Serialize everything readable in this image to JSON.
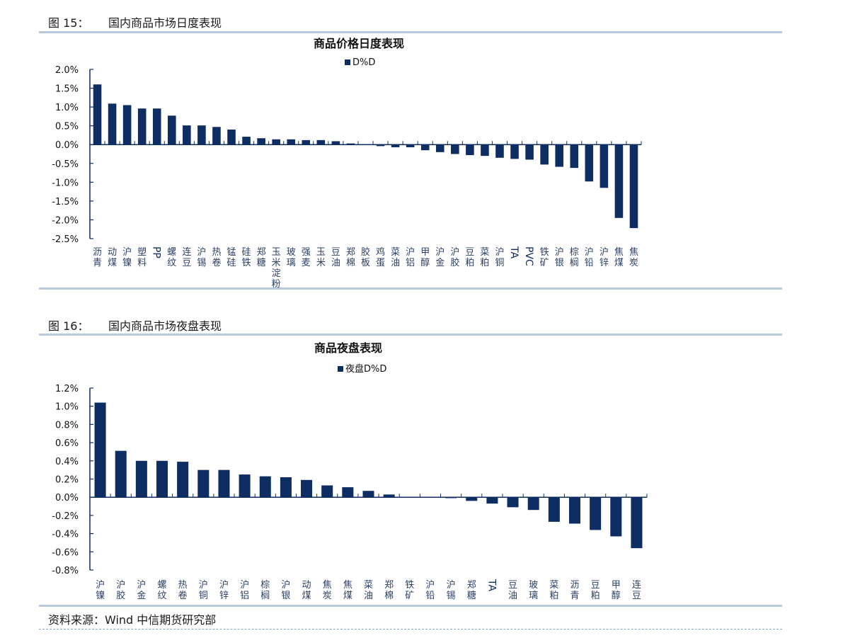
{
  "figures": [
    {
      "label": "图 15：",
      "caption": "国内商品市场日度表现"
    },
    {
      "label": "图 16：",
      "caption": "国内商品市场夜盘表现"
    }
  ],
  "source": "资料来源：Wind  中信期货研究部",
  "colors": {
    "bar": "#0d2d63",
    "rule": "#b8c9dd"
  },
  "chart_data": [
    {
      "type": "bar",
      "title": "商品价格日度表现",
      "legend": "D%D",
      "legend_position": "top",
      "ylim": [
        -2.5,
        2.0
      ],
      "ytick_step": 0.5,
      "ytick_decimals": 1,
      "grid": false,
      "categories": [
        "沥青",
        "动煤",
        "沪镍",
        "塑料",
        "PP",
        "螺纹",
        "连豆",
        "沪锡",
        "热卷",
        "锰硅",
        "硅铁",
        "郑糖",
        "玉米淀粉",
        "玻璃",
        "强麦",
        "玉米",
        "豆油",
        "郑棉",
        "胶板",
        "鸡蛋",
        "菜油",
        "沪铝",
        "甲醇",
        "沪金",
        "沪胶",
        "豆粕",
        "菜粕",
        "沪铜",
        "TA",
        "PVC",
        "铁矿",
        "沪银",
        "棕榈",
        "沪铅",
        "沪锌",
        "焦煤",
        "焦炭"
      ],
      "values": [
        1.6,
        1.09,
        1.05,
        0.96,
        0.96,
        0.77,
        0.51,
        0.51,
        0.47,
        0.4,
        0.21,
        0.17,
        0.14,
        0.14,
        0.12,
        0.12,
        0.09,
        0.03,
        0.0,
        -0.04,
        -0.07,
        -0.07,
        -0.15,
        -0.2,
        -0.25,
        -0.28,
        -0.3,
        -0.35,
        -0.38,
        -0.4,
        -0.53,
        -0.59,
        -0.62,
        -0.98,
        -1.15,
        -1.95,
        -2.22
      ]
    },
    {
      "type": "bar",
      "title": "商品夜盘表现",
      "legend": "夜盘D%D",
      "legend_position": "top",
      "ylim": [
        -0.8,
        1.2
      ],
      "ytick_step": 0.2,
      "ytick_decimals": 1,
      "grid": false,
      "categories": [
        "沪镍",
        "沪胶",
        "沪金",
        "螺纹",
        "热卷",
        "沪铜",
        "沪锌",
        "沪铝",
        "棕榈",
        "沪银",
        "动煤",
        "焦炭",
        "焦煤",
        "菜油",
        "郑棉",
        "铁矿",
        "沪铅",
        "沪锡",
        "郑糖",
        "TA",
        "豆油",
        "玻璃",
        "菜粕",
        "沥青",
        "豆粕",
        "甲醇",
        "连豆"
      ],
      "values": [
        1.04,
        0.51,
        0.4,
        0.4,
        0.39,
        0.3,
        0.3,
        0.25,
        0.23,
        0.22,
        0.19,
        0.13,
        0.11,
        0.07,
        0.03,
        0.0,
        0.0,
        -0.01,
        -0.04,
        -0.07,
        -0.11,
        -0.14,
        -0.27,
        -0.29,
        -0.36,
        -0.43,
        -0.56
      ]
    }
  ]
}
